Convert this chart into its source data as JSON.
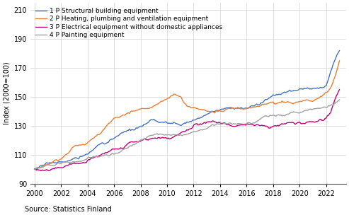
{
  "ylabel": "Index (2000=100)",
  "source": "Source: Statistics Finland",
  "year_start": 2000,
  "n_months": 277,
  "yticks": [
    90,
    110,
    130,
    150,
    170,
    190,
    210
  ],
  "xtick_years": [
    2000,
    2002,
    2004,
    2006,
    2008,
    2010,
    2012,
    2014,
    2016,
    2018,
    2020,
    2022
  ],
  "ylim": [
    90,
    215
  ],
  "xlim": [
    1999.7,
    2023.5
  ],
  "colors": {
    "s1": "#4472c4",
    "s2": "#ed7d31",
    "s3": "#c00078",
    "s4": "#a0a0a0"
  },
  "labels": {
    "s1": "1 P Structural building equipment",
    "s2": "2 P Heating, plumbing and ventilation equipment",
    "s3": "3 P Electrical equipment without domestic appliances",
    "s4": "4 P Painting equipment"
  },
  "s1_waypoints": [
    [
      0,
      100
    ],
    [
      12,
      103
    ],
    [
      24,
      105
    ],
    [
      36,
      107
    ],
    [
      48,
      110
    ],
    [
      60,
      118
    ],
    [
      72,
      122
    ],
    [
      84,
      126
    ],
    [
      96,
      128
    ],
    [
      108,
      131
    ],
    [
      120,
      130
    ],
    [
      132,
      128
    ],
    [
      144,
      133
    ],
    [
      156,
      136
    ],
    [
      168,
      139
    ],
    [
      180,
      141
    ],
    [
      192,
      142
    ],
    [
      204,
      144
    ],
    [
      216,
      150
    ],
    [
      228,
      152
    ],
    [
      240,
      154
    ],
    [
      252,
      154
    ],
    [
      264,
      158
    ],
    [
      270,
      172
    ],
    [
      276,
      182
    ]
  ],
  "s2_waypoints": [
    [
      0,
      100
    ],
    [
      12,
      107
    ],
    [
      18,
      110
    ],
    [
      24,
      112
    ],
    [
      36,
      120
    ],
    [
      48,
      123
    ],
    [
      60,
      130
    ],
    [
      72,
      140
    ],
    [
      84,
      145
    ],
    [
      96,
      149
    ],
    [
      108,
      150
    ],
    [
      114,
      152
    ],
    [
      120,
      154
    ],
    [
      126,
      157
    ],
    [
      132,
      156
    ],
    [
      138,
      148
    ],
    [
      144,
      147
    ],
    [
      156,
      146
    ],
    [
      168,
      145
    ],
    [
      180,
      145
    ],
    [
      192,
      145
    ],
    [
      204,
      147
    ],
    [
      216,
      148
    ],
    [
      228,
      149
    ],
    [
      240,
      150
    ],
    [
      252,
      151
    ],
    [
      260,
      153
    ],
    [
      268,
      158
    ],
    [
      272,
      165
    ],
    [
      276,
      175
    ]
  ],
  "s3_waypoints": [
    [
      0,
      100
    ],
    [
      12,
      101
    ],
    [
      24,
      102
    ],
    [
      36,
      104
    ],
    [
      48,
      106
    ],
    [
      60,
      109
    ],
    [
      72,
      112
    ],
    [
      84,
      114
    ],
    [
      96,
      116
    ],
    [
      108,
      118
    ],
    [
      120,
      120
    ],
    [
      132,
      122
    ],
    [
      144,
      126
    ],
    [
      156,
      128
    ],
    [
      168,
      129
    ],
    [
      180,
      129
    ],
    [
      192,
      129
    ],
    [
      204,
      129
    ],
    [
      216,
      130
    ],
    [
      228,
      130
    ],
    [
      240,
      131
    ],
    [
      252,
      133
    ],
    [
      262,
      134
    ],
    [
      268,
      138
    ],
    [
      272,
      148
    ],
    [
      276,
      155
    ]
  ],
  "s4_waypoints": [
    [
      0,
      100
    ],
    [
      12,
      102
    ],
    [
      24,
      103
    ],
    [
      36,
      105
    ],
    [
      48,
      107
    ],
    [
      60,
      110
    ],
    [
      72,
      112
    ],
    [
      84,
      116
    ],
    [
      96,
      120
    ],
    [
      108,
      122
    ],
    [
      120,
      123
    ],
    [
      132,
      124
    ],
    [
      144,
      126
    ],
    [
      156,
      128
    ],
    [
      168,
      130
    ],
    [
      180,
      131
    ],
    [
      192,
      132
    ],
    [
      204,
      134
    ],
    [
      216,
      136
    ],
    [
      228,
      138
    ],
    [
      240,
      140
    ],
    [
      252,
      142
    ],
    [
      264,
      144
    ],
    [
      270,
      145
    ],
    [
      276,
      148
    ]
  ],
  "noise_scale": 1.2,
  "linewidth": 1.0,
  "bg_color": "#ffffff",
  "grid_color": "#d0d0d0",
  "tick_fontsize": 7,
  "ylabel_fontsize": 7,
  "legend_fontsize": 6.5,
  "source_fontsize": 7
}
